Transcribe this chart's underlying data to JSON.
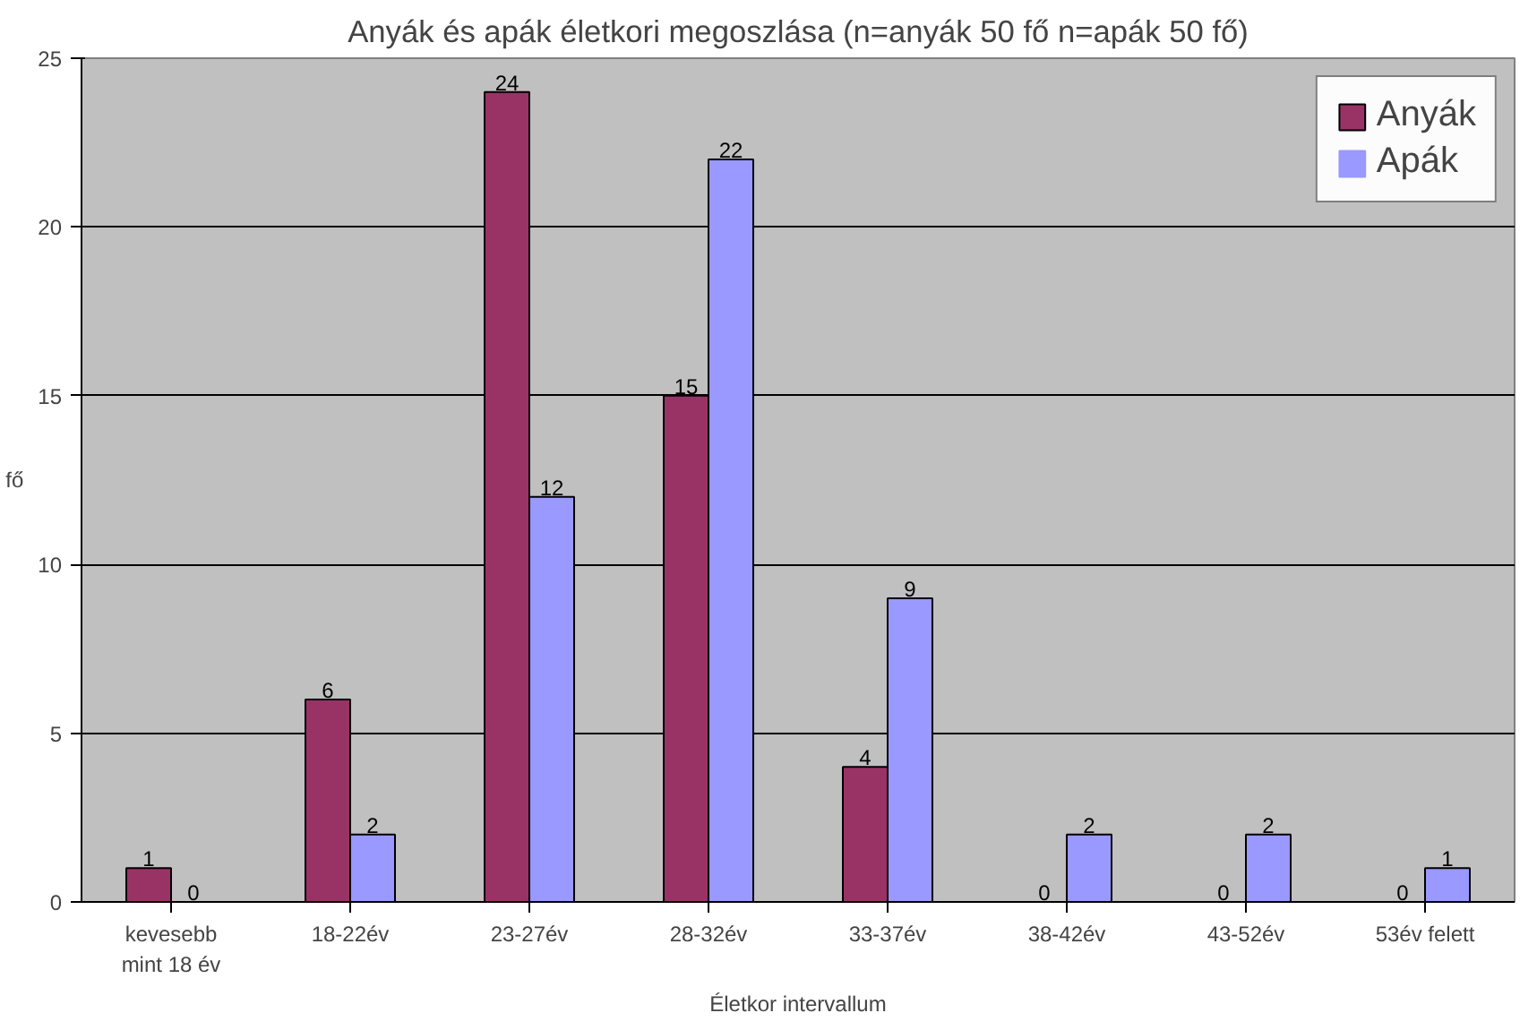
{
  "chart_data": {
    "type": "bar",
    "title": "Anyák és apák életkori megoszlása (n=anyák 50 fő n=apák 50 fő)",
    "xlabel": "Életkor intervallum",
    "ylabel": "fő",
    "categories": [
      "kevesebb mint 18 év",
      "18-22év",
      "23-27év",
      "28-32év",
      "33-37év",
      "38-42év",
      "43-52év",
      "53év felett"
    ],
    "series": [
      {
        "name": "Anyák",
        "color": "#993366",
        "values": [
          1,
          6,
          24,
          15,
          4,
          0,
          0,
          0
        ]
      },
      {
        "name": "Apák",
        "color": "#9999ff",
        "values": [
          0,
          2,
          12,
          22,
          9,
          2,
          2,
          1
        ]
      }
    ],
    "ylim": [
      0,
      25
    ],
    "yticks": [
      0,
      5,
      10,
      15,
      20,
      25
    ],
    "grid": "y",
    "legend": "top right",
    "data_labels": true
  }
}
